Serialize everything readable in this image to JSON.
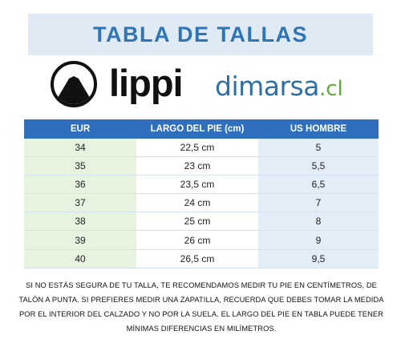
{
  "title": "TABLA DE TALLAS",
  "brands": {
    "lippi": "lippi",
    "dimarsa": {
      "name": "dimarsa",
      "tld": ".cl",
      "name_color": "#2e6fa7",
      "tld_color": "#5eaa3a"
    }
  },
  "colors": {
    "title_band": "#dfeaf4",
    "title_text": "#2f75b5",
    "header_bg": "#2f6fbd",
    "eur_col_bg": "#e6f3df",
    "us_col_bg": "#e3edf7"
  },
  "table": {
    "headers": {
      "eur": "EUR",
      "largo": "LARGO DEL PIE (cm)",
      "us": "US HOMBRE"
    },
    "rows": [
      {
        "eur": "34",
        "largo": "22,5 cm",
        "us": "5"
      },
      {
        "eur": "35",
        "largo": "23 cm",
        "us": "5,5"
      },
      {
        "eur": "36",
        "largo": "23,5 cm",
        "us": "6,5"
      },
      {
        "eur": "37",
        "largo": "24 cm",
        "us": "7"
      },
      {
        "eur": "38",
        "largo": "25 cm",
        "us": "8"
      },
      {
        "eur": "39",
        "largo": "26 cm",
        "us": "9"
      },
      {
        "eur": "40",
        "largo": "26,5 cm",
        "us": "9,5"
      }
    ]
  },
  "note": "Si no estás segura de tu talla, te recomendamos medir tu pie en centímetros, de talón a punta. Si prefieres medir una zapatilla, recuerda que debes tomar la medida por el interior del calzado y no por la suela. El largo del pie en tabla puede tener mínimas diferencias en milímetros."
}
